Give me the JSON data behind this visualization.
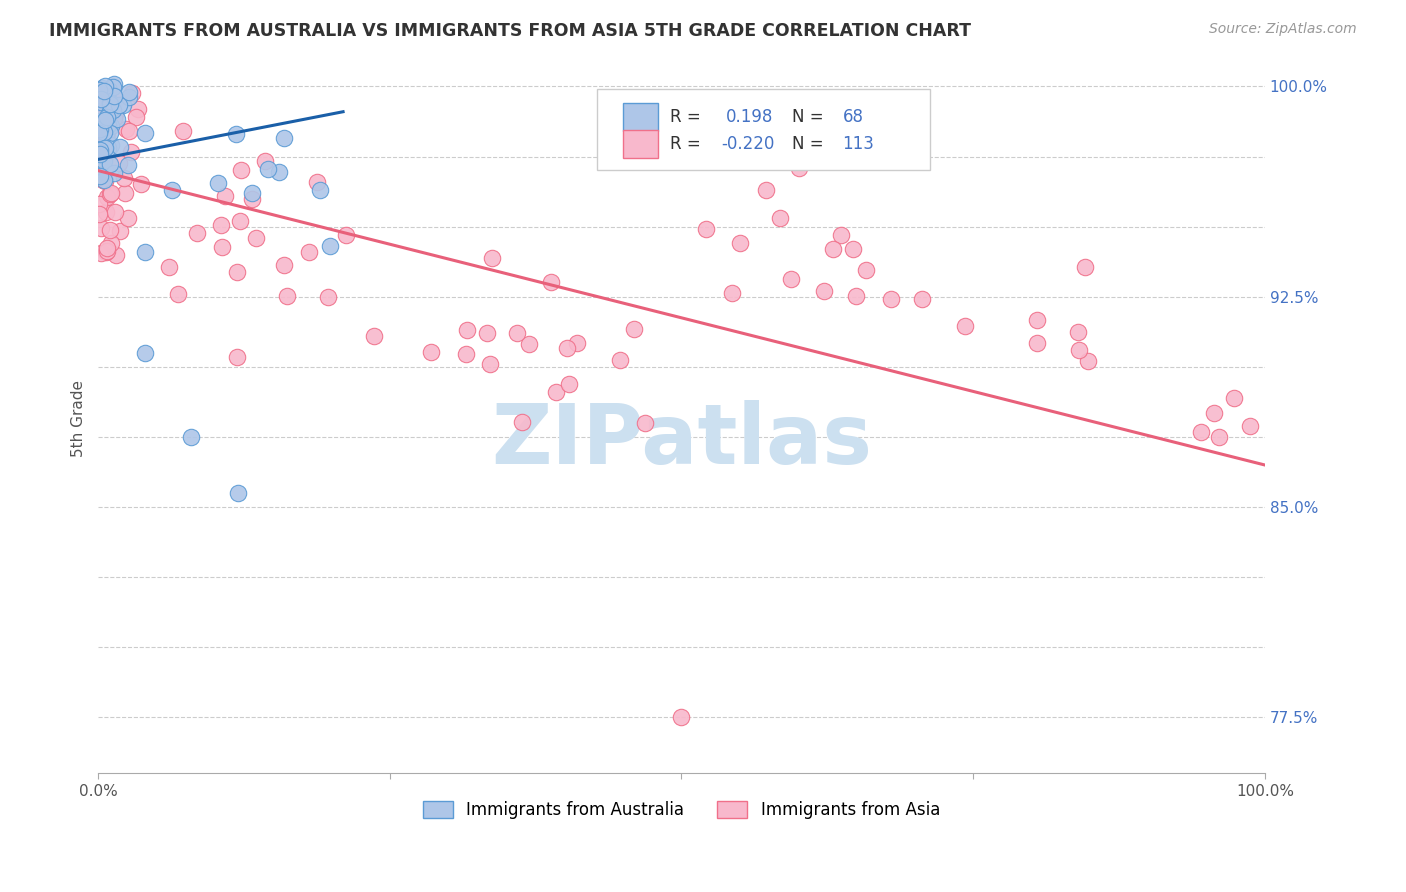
{
  "title": "IMMIGRANTS FROM AUSTRALIA VS IMMIGRANTS FROM ASIA 5TH GRADE CORRELATION CHART",
  "source_text": "Source: ZipAtlas.com",
  "ylabel": "5th Grade",
  "xlim": [
    0.0,
    1.0
  ],
  "ylim": [
    0.755,
    1.008
  ],
  "ytick_vals": [
    0.775,
    0.8,
    0.825,
    0.85,
    0.875,
    0.9,
    0.925,
    0.95,
    0.975,
    1.0
  ],
  "ytick_labels": [
    "77.5%",
    "",
    "",
    "85.0%",
    "",
    "",
    "92.5%",
    "",
    "",
    "100.0%"
  ],
  "xtick_vals": [
    0.0,
    0.25,
    0.5,
    0.75,
    1.0
  ],
  "xtick_labels": [
    "0.0%",
    "",
    "",
    "",
    "100.0%"
  ],
  "australia_edge_color": "#5b9bd5",
  "australia_face_color": "#aec6e8",
  "asia_edge_color": "#f0708a",
  "asia_face_color": "#f8b8cc",
  "trend_australia_color": "#1a5fa8",
  "trend_asia_color": "#e8607a",
  "watermark_text": "ZIPatlas",
  "watermark_color": "#cce0f0",
  "right_axis_color": "#4472c4",
  "legend_r_color": "#4472c4",
  "title_color": "#333333",
  "source_color": "#999999"
}
